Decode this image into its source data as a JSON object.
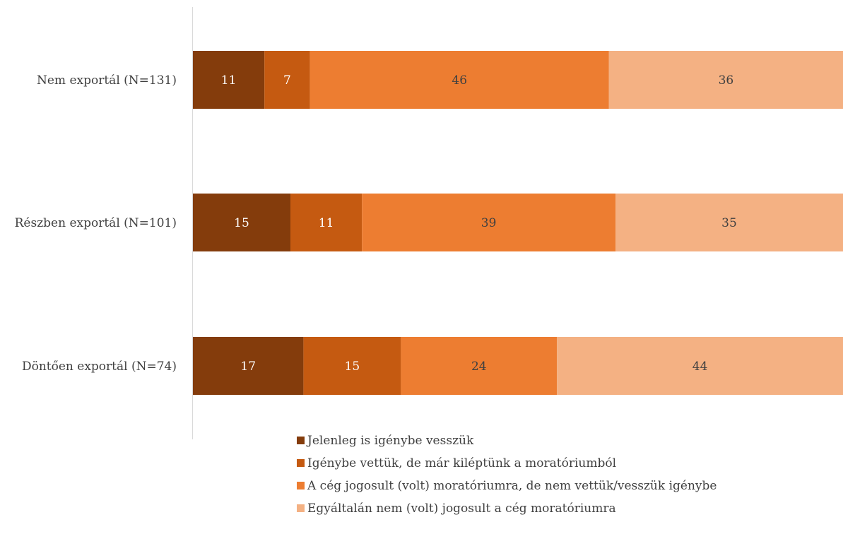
{
  "chart_data": {
    "type": "bar",
    "orientation": "horizontal",
    "stacked": true,
    "percent_stacked": true,
    "categories": [
      "Nem exportál (N=131)",
      "Részben exportál (N=101)",
      "Döntően exportál (N=74)"
    ],
    "series": [
      {
        "name": "Jelenleg is igénybe vesszük",
        "color": "#843C0C",
        "label_color": "#ffffff",
        "values": [
          11,
          15,
          17
        ]
      },
      {
        "name": "Igénybe vettük, de már kiléptünk a moratóriumból",
        "color": "#C55A11",
        "label_color": "#ffffff",
        "values": [
          7,
          11,
          15
        ]
      },
      {
        "name": "A cég jogosult (volt) moratóriumra, de nem vettük/vesszük igénybe",
        "color": "#ED7D31",
        "label_color": "#404040",
        "values": [
          46,
          39,
          24
        ]
      },
      {
        "name": "Egyáltalán nem (volt) jogosult a cég moratóriumra",
        "color": "#F4B183",
        "label_color": "#404040",
        "values": [
          36,
          35,
          44
        ]
      }
    ],
    "xlim": [
      0,
      100
    ],
    "grid": false,
    "legend_position": "bottom"
  }
}
